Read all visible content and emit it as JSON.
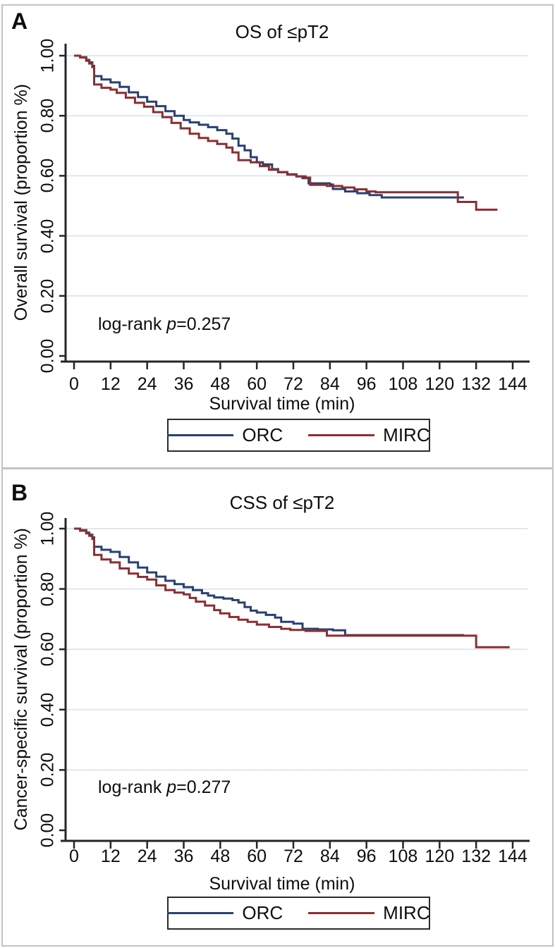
{
  "colors": {
    "orc": "#2a4071",
    "mirc": "#8a2f32",
    "gridline": "#dfe7f0",
    "axis": "#262626",
    "frame_border": "#c3c3c3"
  },
  "chart_data": [
    {
      "type": "line",
      "subtype": "kaplan-meier-step",
      "panel_label": "A",
      "title": "OS of ≤pT2",
      "xlabel": "Survival time (min)",
      "ylabel": "Overall survival (proportion %)",
      "xlim": [
        0,
        144
      ],
      "ylim": [
        0,
        1
      ],
      "xtick_values": [
        0,
        12,
        24,
        36,
        48,
        60,
        72,
        84,
        96,
        108,
        120,
        132,
        144
      ],
      "ytick_values": [
        0,
        0.2,
        0.4,
        0.6,
        0.8,
        1
      ],
      "ytick_labels": [
        "0.00",
        "0.20",
        "0.40",
        "0.60",
        "0.80",
        "1.00"
      ],
      "grid": "horizontal",
      "legend": {
        "position": "bottom",
        "entries": [
          "ORC",
          "MIRC"
        ]
      },
      "annotation": {
        "text": "log-rank p=0.257",
        "prefix": "log-rank ",
        "italic": "p",
        "suffix": "=0.257"
      },
      "series": [
        {
          "name": "ORC",
          "color": "#2a4071",
          "points": [
            [
              0,
              1.0
            ],
            [
              2,
              0.995
            ],
            [
              4,
              0.986
            ],
            [
              5,
              0.978
            ],
            [
              6,
              0.966
            ],
            [
              6.6,
              0.932
            ],
            [
              9,
              0.921
            ],
            [
              12,
              0.911
            ],
            [
              15,
              0.896
            ],
            [
              18,
              0.878
            ],
            [
              21,
              0.862
            ],
            [
              24,
              0.847
            ],
            [
              27,
              0.832
            ],
            [
              30,
              0.815
            ],
            [
              33,
              0.8
            ],
            [
              36,
              0.786
            ],
            [
              38,
              0.778
            ],
            [
              41,
              0.77
            ],
            [
              44,
              0.762
            ],
            [
              47,
              0.752
            ],
            [
              50,
              0.74
            ],
            [
              52,
              0.724
            ],
            [
              54,
              0.7
            ],
            [
              56,
              0.685
            ],
            [
              58,
              0.662
            ],
            [
              60,
              0.645
            ],
            [
              62,
              0.638
            ],
            [
              65,
              0.622
            ],
            [
              67,
              0.612
            ],
            [
              70,
              0.605
            ],
            [
              73,
              0.598
            ],
            [
              75,
              0.592
            ],
            [
              77,
              0.575
            ],
            [
              84,
              0.571
            ],
            [
              85,
              0.556
            ],
            [
              89,
              0.548
            ],
            [
              93,
              0.542
            ],
            [
              97,
              0.536
            ],
            [
              101,
              0.528
            ],
            [
              128,
              0.528
            ]
          ]
        },
        {
          "name": "MIRC",
          "color": "#8a2f32",
          "points": [
            [
              0,
              1.0
            ],
            [
              2,
              0.994
            ],
            [
              4,
              0.983
            ],
            [
              5,
              0.974
            ],
            [
              6,
              0.962
            ],
            [
              6.6,
              0.904
            ],
            [
              9,
              0.893
            ],
            [
              12,
              0.887
            ],
            [
              14,
              0.876
            ],
            [
              17,
              0.86
            ],
            [
              20,
              0.843
            ],
            [
              23,
              0.83
            ],
            [
              26,
              0.812
            ],
            [
              29,
              0.795
            ],
            [
              32,
              0.776
            ],
            [
              35,
              0.758
            ],
            [
              38,
              0.74
            ],
            [
              41,
              0.726
            ],
            [
              44,
              0.716
            ],
            [
              47,
              0.706
            ],
            [
              50,
              0.694
            ],
            [
              52,
              0.678
            ],
            [
              54,
              0.652
            ],
            [
              58,
              0.645
            ],
            [
              61,
              0.632
            ],
            [
              64,
              0.62
            ],
            [
              67,
              0.612
            ],
            [
              70,
              0.604
            ],
            [
              73,
              0.598
            ],
            [
              76,
              0.594
            ],
            [
              77.5,
              0.57
            ],
            [
              83,
              0.566
            ],
            [
              88,
              0.561
            ],
            [
              92,
              0.555
            ],
            [
              96,
              0.548
            ],
            [
              99,
              0.545
            ],
            [
              125,
              0.545
            ],
            [
              126,
              0.513
            ],
            [
              131,
              0.513
            ],
            [
              132,
              0.487
            ],
            [
              139,
              0.487
            ]
          ]
        }
      ]
    },
    {
      "type": "line",
      "subtype": "kaplan-meier-step",
      "panel_label": "B",
      "title": "CSS of ≤pT2",
      "xlabel": "Survival time (min)",
      "ylabel": "Cancer-specific survival (proportion %)",
      "xlim": [
        0,
        144
      ],
      "ylim": [
        0,
        1
      ],
      "xtick_values": [
        0,
        12,
        24,
        36,
        48,
        60,
        72,
        84,
        96,
        108,
        120,
        132,
        144
      ],
      "ytick_values": [
        0,
        0.2,
        0.4,
        0.6,
        0.8,
        1
      ],
      "ytick_labels": [
        "0.00",
        "0.20",
        "0.40",
        "0.60",
        "0.80",
        "1.00"
      ],
      "grid": "horizontal",
      "legend": {
        "position": "bottom",
        "entries": [
          "ORC",
          "MIRC"
        ]
      },
      "annotation": {
        "text": "log-rank p=0.277",
        "prefix": "log-rank ",
        "italic": "p",
        "suffix": "=0.277"
      },
      "series": [
        {
          "name": "ORC",
          "color": "#2a4071",
          "points": [
            [
              0,
              1.0
            ],
            [
              2,
              0.995
            ],
            [
              4,
              0.987
            ],
            [
              5,
              0.98
            ],
            [
              6,
              0.971
            ],
            [
              6.6,
              0.94
            ],
            [
              9,
              0.93
            ],
            [
              12,
              0.923
            ],
            [
              15,
              0.906
            ],
            [
              18,
              0.888
            ],
            [
              21,
              0.871
            ],
            [
              24,
              0.855
            ],
            [
              27,
              0.841
            ],
            [
              30,
              0.827
            ],
            [
              33,
              0.816
            ],
            [
              36,
              0.806
            ],
            [
              39,
              0.796
            ],
            [
              42,
              0.786
            ],
            [
              44,
              0.778
            ],
            [
              46,
              0.772
            ],
            [
              49,
              0.768
            ],
            [
              52,
              0.763
            ],
            [
              54,
              0.755
            ],
            [
              56,
              0.74
            ],
            [
              58,
              0.728
            ],
            [
              60,
              0.722
            ],
            [
              63,
              0.714
            ],
            [
              66,
              0.705
            ],
            [
              68,
              0.691
            ],
            [
              72,
              0.685
            ],
            [
              75,
              0.668
            ],
            [
              80,
              0.666
            ],
            [
              85,
              0.663
            ],
            [
              89,
              0.647
            ],
            [
              128,
              0.647
            ]
          ]
        },
        {
          "name": "MIRC",
          "color": "#8a2f32",
          "points": [
            [
              0,
              1.0
            ],
            [
              2,
              0.993
            ],
            [
              4,
              0.984
            ],
            [
              5,
              0.976
            ],
            [
              6,
              0.966
            ],
            [
              6.6,
              0.913
            ],
            [
              9,
              0.898
            ],
            [
              12,
              0.888
            ],
            [
              15,
              0.868
            ],
            [
              18,
              0.851
            ],
            [
              21,
              0.84
            ],
            [
              24,
              0.831
            ],
            [
              27,
              0.812
            ],
            [
              30,
              0.796
            ],
            [
              33,
              0.788
            ],
            [
              36,
              0.782
            ],
            [
              38,
              0.77
            ],
            [
              40,
              0.758
            ],
            [
              43,
              0.745
            ],
            [
              46,
              0.73
            ],
            [
              48,
              0.719
            ],
            [
              51,
              0.707
            ],
            [
              54,
              0.698
            ],
            [
              57,
              0.691
            ],
            [
              60,
              0.682
            ],
            [
              64,
              0.674
            ],
            [
              68,
              0.668
            ],
            [
              71,
              0.664
            ],
            [
              76,
              0.661
            ],
            [
              83,
              0.645
            ],
            [
              131,
              0.645
            ],
            [
              132,
              0.607
            ],
            [
              143,
              0.607
            ]
          ]
        }
      ]
    }
  ]
}
